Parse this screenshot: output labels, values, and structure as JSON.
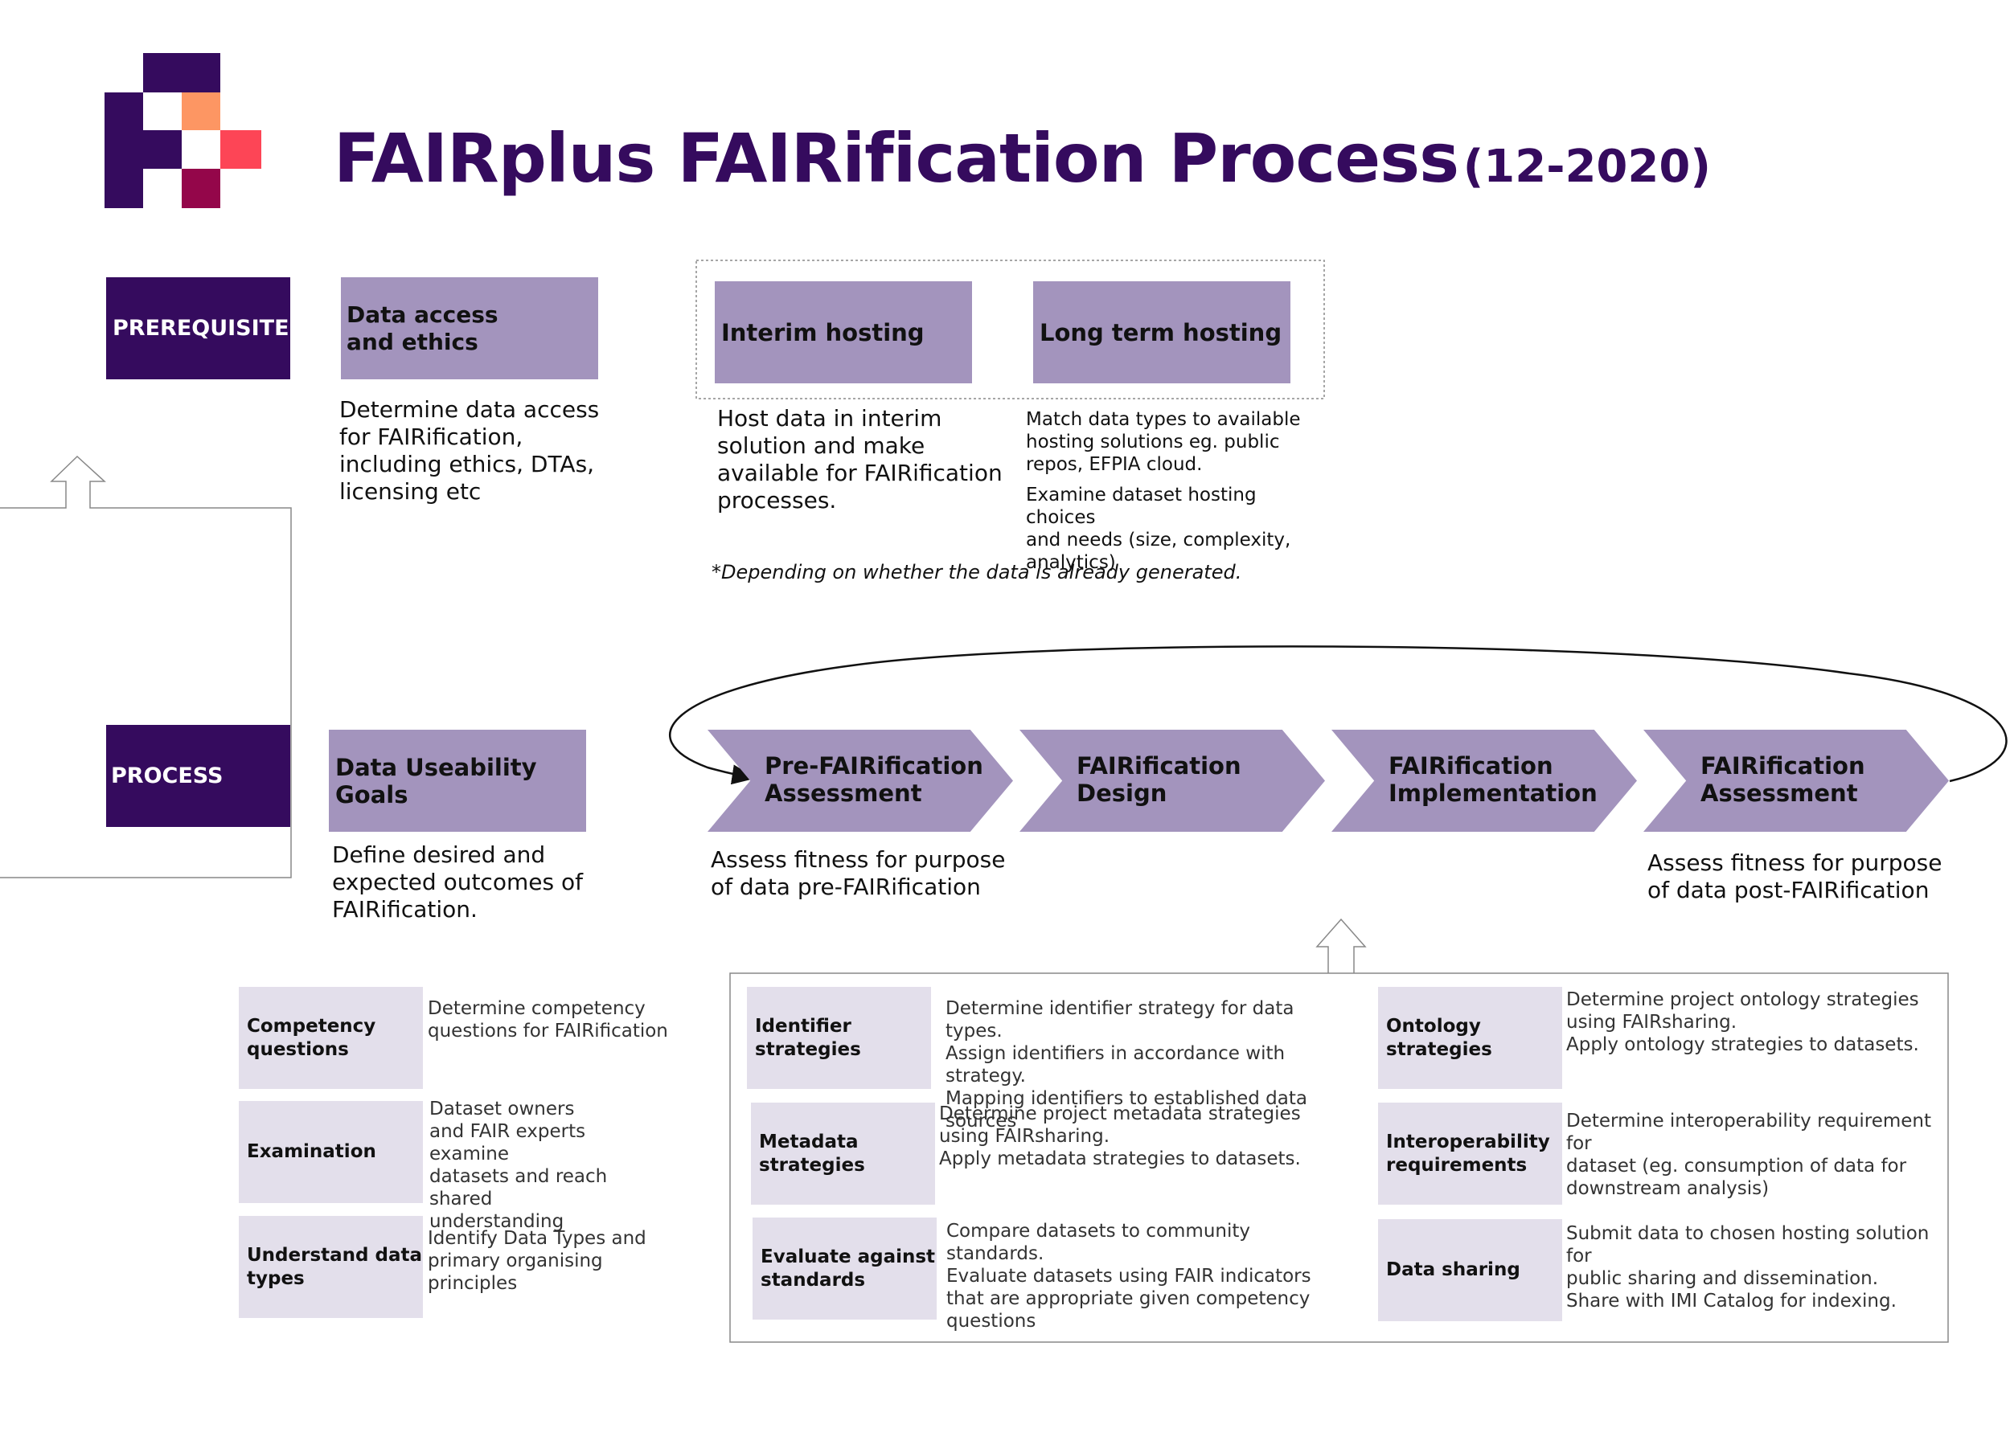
{
  "title": {
    "main": "FAIRplus FAIRification Process",
    "date": "(12-2020)"
  },
  "colors": {
    "dark": "#350b5e",
    "mid": "#a394bd",
    "light": "#e3dfeb",
    "logo_orange": "#fd9663",
    "logo_red": "#fd4556",
    "logo_crimson": "#94064a"
  },
  "prerequisites": {
    "label": "PREREQUISITES",
    "data_access": {
      "title": "Data access\nand ethics",
      "desc": "Determine data access\nfor FAIRification,\nincluding ethics, DTAs,\nlicensing etc"
    },
    "interim": {
      "title": "Interim hosting",
      "desc": "Host data in interim\nsolution and make\navailable for FAIRification\nprocesses."
    },
    "long_term": {
      "title": "Long term hosting",
      "desc1": "Match data types to available\nhosting solutions eg. public\nrepos, EFPIA cloud.",
      "desc2": "Examine dataset hosting choices\nand needs (size, complexity,\nanalytics)"
    },
    "note": "*Depending on whether the data is already generated."
  },
  "process": {
    "label": "PROCESS",
    "goals": {
      "title": "Data Useability Goals",
      "desc": "Define desired and\nexpected outcomes of\nFAIRification."
    },
    "steps": [
      {
        "label": "Pre-FAIRification\nAssessment",
        "desc": "Assess fitness for purpose\nof data pre-FAIRification"
      },
      {
        "label": "FAIRification\nDesign",
        "desc": ""
      },
      {
        "label": "FAIRification\nImplementation",
        "desc": ""
      },
      {
        "label": "FAIRification\nAssessment",
        "desc": "Assess fitness for purpose\nof data post-FAIRification"
      }
    ]
  },
  "goal_details": [
    {
      "title": "Competency\nquestions",
      "desc": "Determine competency\nquestions for FAIRification"
    },
    {
      "title": "Examination",
      "desc": "Dataset owners\nand FAIR experts examine\ndatasets and reach shared\nunderstanding"
    },
    {
      "title": "Understand data\ntypes",
      "desc": "Identify Data Types and\nprimary organising\nprinciples"
    }
  ],
  "implementation_details": [
    {
      "title": "Identifier\nstrategies",
      "desc": "Determine identifier strategy for data types.\nAssign identifiers in accordance with strategy.\nMapping identifiers to established data\nsources"
    },
    {
      "title": "Metadata\nstrategies",
      "desc": "Determine  project metadata strategies\nusing FAIRsharing.\nApply metadata strategies to datasets."
    },
    {
      "title": "Evaluate against\nstandards",
      "desc": "Compare datasets to community\nstandards.\nEvaluate datasets using FAIR indicators\nthat are appropriate given competency\nquestions"
    },
    {
      "title": "Ontology\nstrategies",
      "desc": "Determine  project ontology strategies\nusing FAIRsharing.\nApply ontology strategies to datasets."
    },
    {
      "title": "Interoperability\nrequirements",
      "desc": "Determine interoperability requirement for\ndataset  (eg. consumption of data for\ndownstream analysis)"
    },
    {
      "title": "Data sharing",
      "desc": "Submit data to chosen hosting solution for\npublic sharing and dissemination.\nShare with IMI Catalog for indexing."
    }
  ]
}
